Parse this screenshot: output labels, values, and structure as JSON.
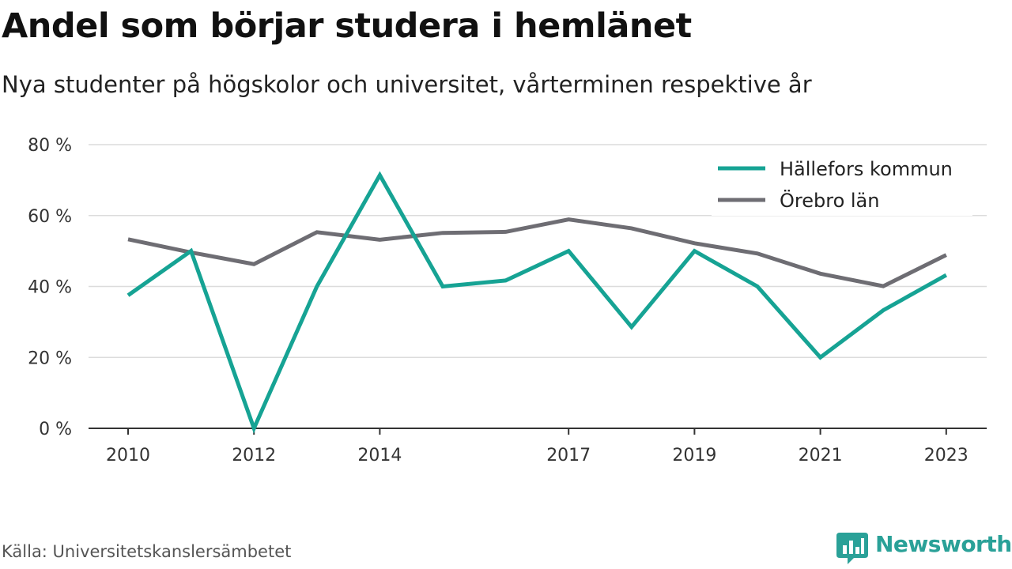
{
  "chart_data": {
    "type": "line",
    "title": "Andel som börjar studera i hemlänet",
    "subtitle": "Nya studenter på högskolor och universitet, vårterminen respektive år",
    "x": [
      2010,
      2011,
      2012,
      2013,
      2014,
      2015,
      2016,
      2017,
      2018,
      2019,
      2020,
      2021,
      2022,
      2023
    ],
    "x_tick_labels": [
      "2010",
      "2012",
      "2014",
      "2017",
      "2019",
      "2021",
      "2023"
    ],
    "y_ticks": [
      0,
      20,
      40,
      60,
      80
    ],
    "y_tick_labels": [
      "0 %",
      "20 %",
      "40 %",
      "60 %",
      "80 %"
    ],
    "ylim": [
      0,
      80
    ],
    "xlabel": "",
    "ylabel": "",
    "grid": "horizontal",
    "legend_position": "top-right",
    "series": [
      {
        "name": "Hällefors kommun",
        "color": "#16a394",
        "values": [
          37.5,
          50,
          0,
          40,
          71.4,
          40,
          41.7,
          50,
          28.6,
          50,
          40,
          20,
          33.3,
          43.2
        ]
      },
      {
        "name": "Örebro län",
        "color": "#6e6d73",
        "values": [
          53.3,
          49.6,
          46.3,
          55.3,
          53.2,
          55.1,
          55.4,
          58.9,
          56.4,
          52.2,
          49.3,
          43.6,
          40.1,
          48.9
        ]
      }
    ]
  },
  "footer": {
    "source": "Källa: Universitetskanslersämbetet",
    "brand": "Newsworthy",
    "brand_color": "#2aa198",
    "brand_icon": "bar-chart-speech-bubble-icon"
  }
}
